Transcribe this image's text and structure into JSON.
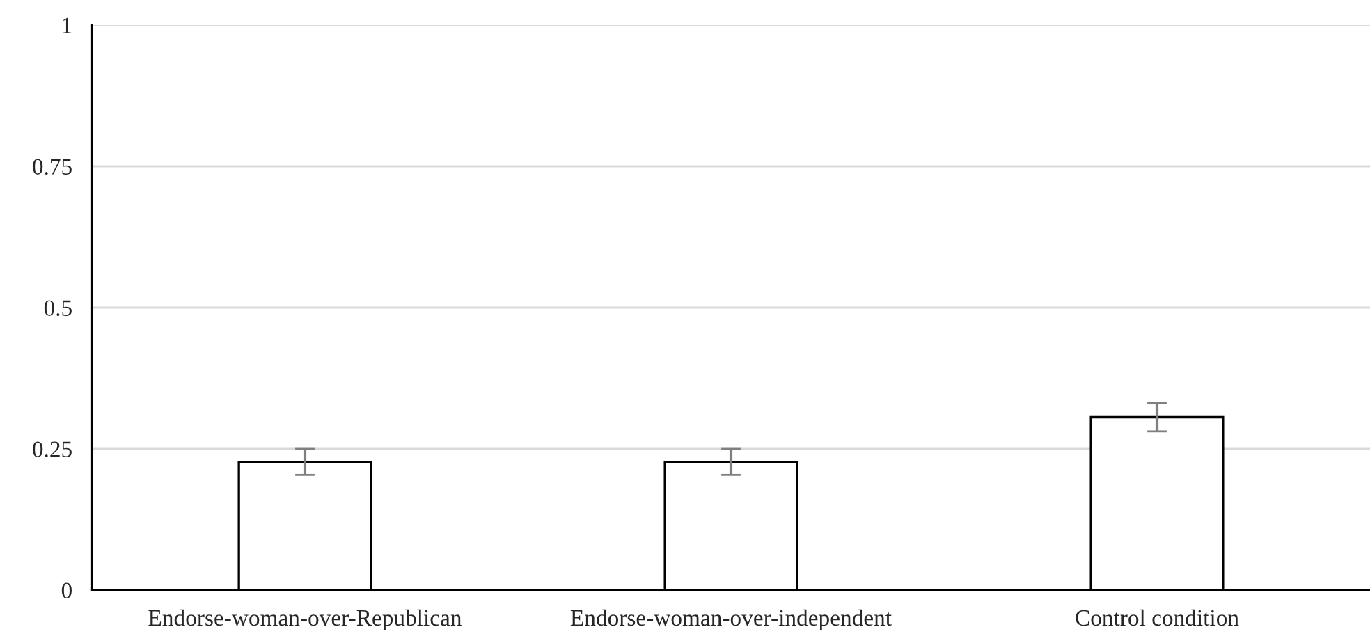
{
  "chart_data": {
    "type": "bar",
    "categories": [
      "Endorse-woman-over-Republican",
      "Endorse-woman-over-independent",
      "Control condition"
    ],
    "values": [
      0.227,
      0.227,
      0.306
    ],
    "errors": [
      0.023,
      0.023,
      0.025
    ],
    "color": "#ffffff",
    "ylim": [
      0,
      1
    ],
    "yticks": [
      0,
      0.25,
      0.5,
      0.75,
      1
    ],
    "grid": "y"
  }
}
